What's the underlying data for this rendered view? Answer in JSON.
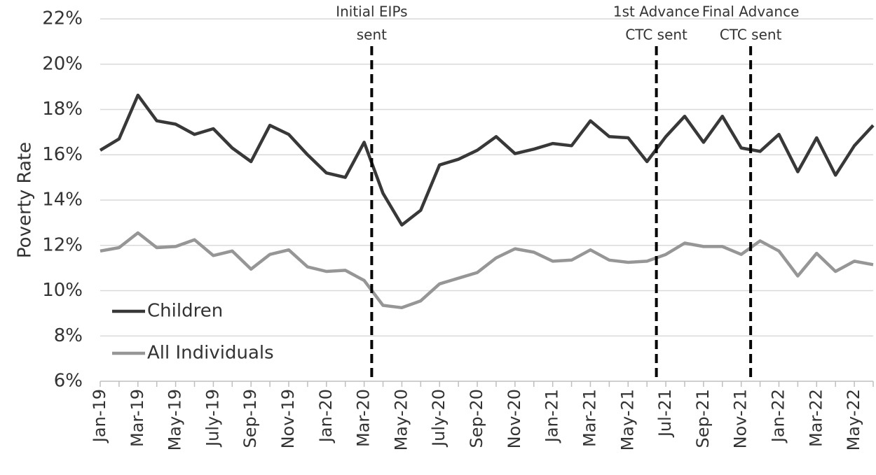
{
  "chart_data": {
    "type": "line",
    "y_axis_label": "Poverty Rate",
    "categories": [
      "Jan-19",
      null,
      "Mar-19",
      null,
      "May-19",
      null,
      "July-19",
      null,
      "Sep-19",
      null,
      "Nov-19",
      null,
      "Jan-20",
      null,
      "Mar-20",
      null,
      "May-20",
      null,
      "July-20",
      null,
      "Sep-20",
      null,
      "Nov-20",
      null,
      "Jan-21",
      null,
      "Mar-21",
      null,
      "May-21",
      null,
      "Jul-21",
      null,
      "Sep-21",
      null,
      "Nov-21",
      null,
      "Jan-22",
      null,
      "Mar-22",
      null,
      "May-22",
      null
    ],
    "series": [
      {
        "name": "Children",
        "color": "#383838",
        "values": [
          16.2,
          16.7,
          18.63,
          17.5,
          17.35,
          16.9,
          17.15,
          16.3,
          15.7,
          17.3,
          16.9,
          16.0,
          15.2,
          15.0,
          16.55,
          14.3,
          12.9,
          13.55,
          15.55,
          15.8,
          16.2,
          16.8,
          16.05,
          16.25,
          16.5,
          16.4,
          17.5,
          16.8,
          16.75,
          15.7,
          16.8,
          17.7,
          16.55,
          17.7,
          16.3,
          16.15,
          16.9,
          15.25,
          16.75,
          15.1,
          16.4,
          17.3
        ]
      },
      {
        "name": "All Individuals",
        "color": "#969696",
        "values": [
          11.75,
          11.9,
          12.55,
          11.9,
          11.95,
          12.25,
          11.55,
          11.75,
          10.95,
          11.6,
          11.8,
          11.05,
          10.85,
          10.9,
          10.45,
          9.35,
          9.25,
          9.55,
          10.3,
          10.55,
          10.8,
          11.45,
          11.85,
          11.7,
          11.3,
          11.35,
          11.8,
          11.35,
          11.25,
          11.3,
          11.6,
          12.1,
          11.95,
          11.95,
          11.6,
          12.2,
          11.75,
          10.65,
          11.65,
          10.85,
          11.3,
          11.15
        ]
      }
    ],
    "ylim": [
      6,
      22
    ],
    "yticks": [
      {
        "value": 6,
        "label": "6%"
      },
      {
        "value": 8,
        "label": "8%"
      },
      {
        "value": 10,
        "label": "10%"
      },
      {
        "value": 12,
        "label": "12%"
      },
      {
        "value": 14,
        "label": "14%"
      },
      {
        "value": 16,
        "label": "16%"
      },
      {
        "value": 18,
        "label": "18%"
      },
      {
        "value": 20,
        "label": "20%"
      },
      {
        "value": 22,
        "label": "22%"
      }
    ],
    "grid": true,
    "legend": "lower-left",
    "events": [
      {
        "x": 14.4,
        "lines": [
          "Initial EIPs",
          "sent"
        ]
      },
      {
        "x": 29.5,
        "lines": [
          "1st Advance",
          "CTC sent"
        ]
      },
      {
        "x": 34.5,
        "lines": [
          "Final Advance",
          "CTC sent"
        ]
      }
    ]
  }
}
